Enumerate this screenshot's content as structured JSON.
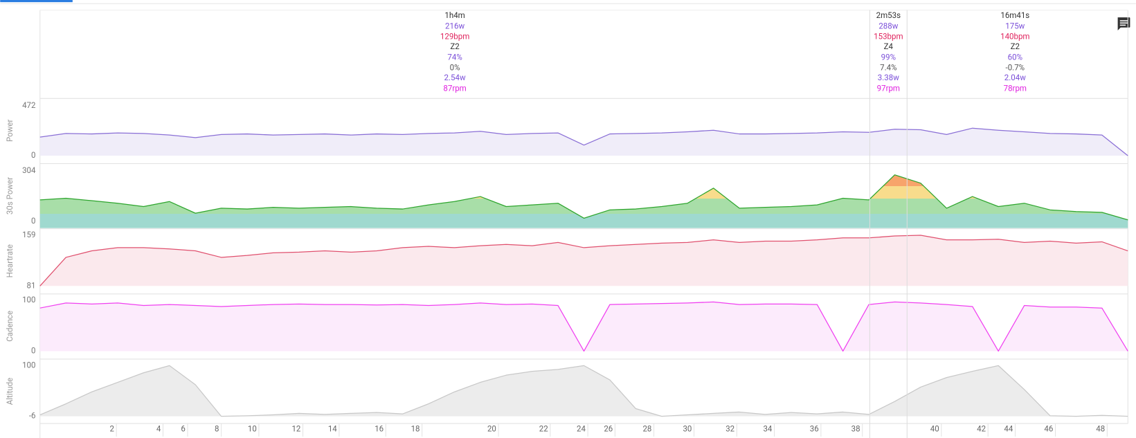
{
  "intervals": [
    {
      "start": 0,
      "end": 64.07,
      "lines": [
        "1h4m",
        "216w",
        "129bpm",
        "Z2",
        "74%",
        "0%",
        "2.54w",
        "87rpm"
      ]
    },
    {
      "start": 64.07,
      "end": 66.95,
      "lines": [
        "2m53s",
        "288w",
        "153bpm",
        "Z4",
        "99%",
        "7.4%",
        "3.38w",
        "97rpm"
      ]
    },
    {
      "start": 66.95,
      "end": 83.63,
      "lines": [
        "16m41s",
        "175w",
        "140bpm",
        "Z2",
        "60%",
        "-0.7%",
        "2.04w",
        "78rpm"
      ]
    }
  ],
  "chart_data": [
    {
      "type": "area",
      "title": "Power",
      "color": "#8a6fd6",
      "ylim": [
        0,
        472
      ],
      "yticks": [
        0,
        472
      ],
      "xlim": [
        0,
        84
      ],
      "x": [
        0,
        2,
        4,
        6,
        8,
        10,
        12,
        14,
        16,
        18,
        20,
        22,
        24,
        26,
        28,
        30,
        32,
        34,
        36,
        38,
        40,
        42,
        44,
        46,
        48,
        50,
        52,
        54,
        56,
        58,
        60,
        62,
        64,
        66,
        68,
        70,
        72,
        74,
        76,
        78,
        80,
        82,
        84
      ],
      "values": [
        175,
        210,
        205,
        215,
        210,
        195,
        170,
        200,
        205,
        195,
        200,
        205,
        195,
        205,
        200,
        210,
        215,
        230,
        200,
        210,
        215,
        100,
        205,
        210,
        215,
        225,
        240,
        205,
        205,
        210,
        215,
        225,
        220,
        250,
        245,
        200,
        260,
        240,
        225,
        210,
        205,
        195,
        0
      ]
    },
    {
      "type": "area",
      "title": "30s Power",
      "color": "#2ea52e",
      "ylim": [
        0,
        304
      ],
      "yticks": [
        0,
        304
      ],
      "xlim": [
        0,
        84
      ],
      "x": [
        0,
        2,
        4,
        6,
        8,
        10,
        12,
        14,
        16,
        18,
        20,
        22,
        24,
        26,
        28,
        30,
        32,
        34,
        36,
        38,
        40,
        42,
        44,
        46,
        48,
        50,
        52,
        54,
        56,
        58,
        60,
        62,
        64,
        66,
        68,
        70,
        72,
        74,
        76,
        78,
        80,
        82,
        84
      ],
      "values": [
        130,
        140,
        125,
        110,
        90,
        120,
        50,
        80,
        75,
        85,
        80,
        85,
        90,
        80,
        75,
        100,
        120,
        150,
        90,
        100,
        110,
        20,
        70,
        75,
        90,
        110,
        200,
        80,
        85,
        90,
        100,
        140,
        130,
        280,
        230,
        80,
        150,
        90,
        110,
        70,
        60,
        55,
        10
      ]
    },
    {
      "type": "area",
      "title": "Heartrate",
      "color": "#e0506e",
      "ylim": [
        81,
        159
      ],
      "yticks": [
        81,
        159
      ],
      "xlim": [
        0,
        84
      ],
      "x": [
        0,
        2,
        4,
        6,
        8,
        10,
        12,
        14,
        16,
        18,
        20,
        22,
        24,
        26,
        28,
        30,
        32,
        34,
        36,
        38,
        40,
        42,
        44,
        46,
        48,
        50,
        52,
        54,
        56,
        58,
        60,
        62,
        64,
        66,
        68,
        70,
        72,
        74,
        76,
        78,
        80,
        82,
        84
      ],
      "values": [
        81,
        125,
        135,
        140,
        140,
        138,
        135,
        125,
        128,
        132,
        133,
        135,
        133,
        135,
        140,
        142,
        140,
        143,
        145,
        143,
        148,
        140,
        143,
        145,
        147,
        148,
        152,
        148,
        150,
        150,
        152,
        155,
        155,
        158,
        159,
        152,
        152,
        153,
        148,
        150,
        147,
        149,
        135
      ]
    },
    {
      "type": "area",
      "title": "Cadence",
      "color": "#f040f0",
      "ylim": [
        0,
        100
      ],
      "yticks": [
        0,
        100
      ],
      "xlim": [
        0,
        84
      ],
      "x": [
        0,
        2,
        4,
        6,
        8,
        10,
        12,
        14,
        16,
        18,
        20,
        22,
        24,
        26,
        28,
        30,
        32,
        34,
        36,
        38,
        40,
        42,
        44,
        46,
        48,
        50,
        52,
        54,
        56,
        58,
        60,
        62,
        64,
        66,
        68,
        70,
        72,
        74,
        76,
        78,
        80,
        82,
        84
      ],
      "values": [
        85,
        95,
        93,
        95,
        90,
        92,
        90,
        88,
        90,
        92,
        93,
        92,
        92,
        91,
        92,
        90,
        92,
        95,
        92,
        93,
        90,
        0,
        92,
        93,
        94,
        95,
        97,
        92,
        93,
        93,
        92,
        0,
        92,
        97,
        95,
        92,
        88,
        0,
        90,
        87,
        87,
        85,
        0
      ]
    },
    {
      "type": "area",
      "title": "Altitude",
      "color": "#c8c8c8",
      "ylim": [
        -6,
        100
      ],
      "yticks": [
        -6,
        100
      ],
      "xlim": [
        0,
        84
      ],
      "x": [
        0,
        2,
        4,
        6,
        8,
        10,
        12,
        14,
        16,
        18,
        20,
        22,
        24,
        26,
        28,
        30,
        32,
        34,
        36,
        38,
        40,
        42,
        44,
        46,
        48,
        50,
        52,
        54,
        56,
        58,
        60,
        62,
        64,
        66,
        68,
        70,
        72,
        74,
        76,
        78,
        80,
        82,
        84
      ],
      "values": [
        -3,
        20,
        45,
        65,
        85,
        100,
        60,
        -6,
        -5,
        -3,
        0,
        -2,
        0,
        2,
        -1,
        20,
        45,
        65,
        80,
        88,
        92,
        100,
        70,
        10,
        -6,
        -3,
        0,
        3,
        -2,
        2,
        -1,
        3,
        -2,
        25,
        55,
        75,
        88,
        100,
        50,
        -5,
        -6,
        -4,
        -6
      ],
      "xticks": [
        {
          "value": 5.9,
          "label": "2"
        },
        {
          "value": 9.5,
          "label": "4"
        },
        {
          "value": 11.4,
          "label": "6"
        },
        {
          "value": 14.0,
          "label": "8"
        },
        {
          "value": 16.9,
          "label": "10"
        },
        {
          "value": 20.3,
          "label": "12"
        },
        {
          "value": 23.1,
          "label": "14"
        },
        {
          "value": 26.7,
          "label": "16"
        },
        {
          "value": 29.5,
          "label": "18"
        },
        {
          "value": 35.4,
          "label": "20"
        },
        {
          "value": 39.4,
          "label": "22"
        },
        {
          "value": 42.3,
          "label": "24"
        },
        {
          "value": 44.4,
          "label": "26"
        },
        {
          "value": 47.4,
          "label": "28"
        },
        {
          "value": 50.5,
          "label": "30"
        },
        {
          "value": 53.8,
          "label": "32"
        },
        {
          "value": 56.7,
          "label": "34"
        },
        {
          "value": 60.3,
          "label": "36"
        },
        {
          "value": 63.5,
          "label": "38"
        },
        {
          "value": 69.6,
          "label": "40"
        },
        {
          "value": 73.2,
          "label": "42"
        },
        {
          "value": 75.3,
          "label": "44"
        },
        {
          "value": 78.4,
          "label": "46"
        },
        {
          "value": 82.4,
          "label": "48"
        }
      ]
    }
  ]
}
